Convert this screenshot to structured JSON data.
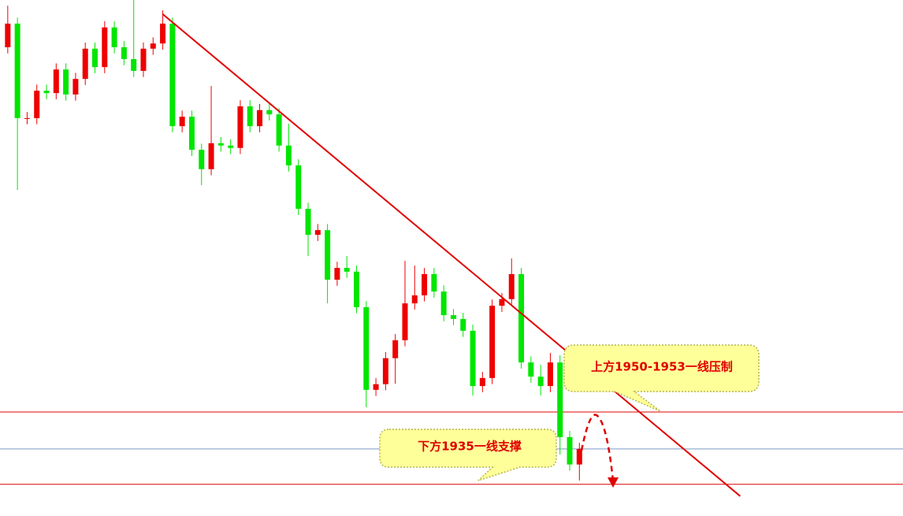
{
  "chart_data": {
    "type": "candlestick",
    "xlim": [
      -0.8,
      92.4
    ],
    "ylim": [
      1928.0,
      2037.2
    ],
    "up_color": "#ee0000",
    "down_color": "#00e600",
    "open": [
      2027.2,
      2032.2,
      2012.2,
      2012.2,
      2018.0,
      2017.5,
      2022.5,
      2017.2,
      2020.5,
      2026.9,
      2023.0,
      2031.4,
      2027.2,
      2024.7,
      2022.2,
      2026.9,
      2028.0,
      2032.2,
      2010.5,
      2012.5,
      2005.5,
      2001.4,
      2006.9,
      2006.4,
      2005.9,
      2014.7,
      2010.5,
      2013.9,
      2013.0,
      2006.4,
      2002.2,
      1993.0,
      1987.5,
      1988.5,
      1978.0,
      1980.5,
      1979.7,
      1972.2,
      1954.7,
      1955.9,
      1961.4,
      1965.2,
      1973.0,
      1974.7,
      1979.2,
      1975.5,
      1970.5,
      1969.7,
      1967.2,
      1955.5,
      1957.2,
      1972.5,
      1973.9,
      1979.2,
      1960.5,
      1957.5,
      1955.5,
      1960.5,
      1944.7,
      1938.9
    ],
    "high": [
      2036.0,
      2033.5,
      2013.5,
      2019.3,
      2019.3,
      2023.8,
      2023.8,
      2021.8,
      2028.2,
      2028.2,
      2032.7,
      2032.7,
      2028.5,
      2037.2,
      2028.2,
      2029.3,
      2035.0,
      2033.5,
      2013.8,
      2013.8,
      2006.8,
      2019.0,
      2008.2,
      2007.7,
      2016.0,
      2016.0,
      2015.2,
      2015.2,
      2014.3,
      2011.0,
      2003.5,
      1994.3,
      1989.8,
      1989.8,
      1981.8,
      1983.0,
      1981.0,
      1973.5,
      1957.2,
      1962.7,
      1966.5,
      1982.0,
      1981.0,
      1980.5,
      1980.5,
      1976.8,
      1971.8,
      1971.0,
      1968.5,
      1958.5,
      1973.8,
      1975.2,
      1982.5,
      1980.5,
      1961.8,
      1960.0,
      1962.5,
      1962.0,
      1946.0,
      1943.5
    ],
    "low": [
      2025.9,
      1997.0,
      2010.9,
      2010.9,
      2016.2,
      2016.2,
      2015.9,
      2015.9,
      2019.2,
      2021.7,
      2021.7,
      2025.9,
      2023.4,
      2020.9,
      2020.9,
      2025.6,
      2026.7,
      2009.2,
      2009.2,
      2004.2,
      1998.0,
      2000.1,
      2005.1,
      2004.6,
      2004.6,
      2009.2,
      2009.2,
      2011.7,
      2005.1,
      2000.9,
      1991.7,
      1983.0,
      1986.2,
      1973.0,
      1976.7,
      1978.4,
      1970.9,
      1951.0,
      1953.4,
      1954.6,
      1956.0,
      1963.9,
      1971.7,
      1973.4,
      1974.2,
      1969.2,
      1968.4,
      1965.9,
      1953.5,
      1954.2,
      1955.9,
      1971.2,
      1972.6,
      1959.2,
      1956.2,
      1953.5,
      1954.2,
      1941.0,
      1937.6,
      1935.5
    ],
    "close": [
      2032.2,
      2012.2,
      2012.2,
      2018.0,
      2017.5,
      2022.5,
      2017.2,
      2020.5,
      2026.9,
      2023.0,
      2031.4,
      2027.2,
      2024.7,
      2022.2,
      2026.9,
      2028.0,
      2032.2,
      2010.5,
      2012.5,
      2005.5,
      2001.4,
      2006.9,
      2006.4,
      2005.9,
      2014.7,
      2010.5,
      2013.9,
      2013.0,
      2006.4,
      2002.2,
      1993.0,
      1987.5,
      1988.5,
      1978.0,
      1980.5,
      1979.7,
      1972.2,
      1954.7,
      1955.9,
      1961.4,
      1965.2,
      1973.0,
      1974.7,
      1979.2,
      1975.5,
      1970.5,
      1969.7,
      1967.2,
      1955.5,
      1957.2,
      1972.5,
      1973.9,
      1979.2,
      1960.5,
      1957.5,
      1955.5,
      1960.5,
      1944.7,
      1938.9,
      1942.2
    ],
    "hlines": [
      {
        "value": 1950.0,
        "color": "#e00000"
      },
      {
        "value": 1942.2,
        "color": "#7a9ac8"
      },
      {
        "value": 1934.7,
        "color": "#e00000"
      }
    ],
    "trendline": {
      "x": [
        16.0,
        75.6
      ],
      "y": [
        2034.2,
        1932.2
      ],
      "color": "#e00000"
    },
    "annotations": [
      "上方1950-1953一线压制",
      "下方1935一线支撑"
    ]
  }
}
